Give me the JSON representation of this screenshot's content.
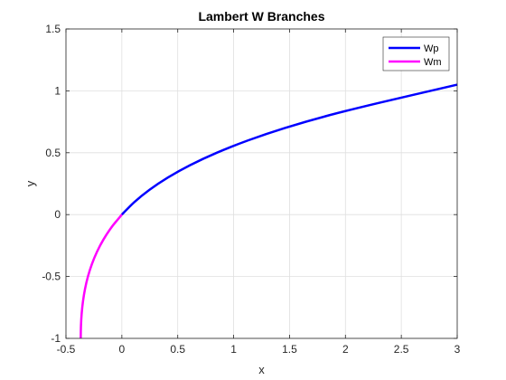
{
  "chart_data": {
    "type": "line",
    "title": "Lambert W Branches",
    "xlabel": "x",
    "ylabel": "y",
    "xlim": [
      -0.5,
      3
    ],
    "ylim": [
      -1,
      1.5
    ],
    "xticks": [
      -0.5,
      0,
      0.5,
      1,
      1.5,
      2,
      2.5,
      3
    ],
    "yticks": [
      -1,
      -0.5,
      0,
      0.5,
      1,
      1.5
    ],
    "xtick_labels": [
      "-0.5",
      "0",
      "0.5",
      "1",
      "1.5",
      "2",
      "2.5",
      "3"
    ],
    "ytick_labels": [
      "-1",
      "-0.5",
      "0",
      "0.5",
      "1",
      "1.5"
    ],
    "grid": true,
    "legend_position": "top-right",
    "series": [
      {
        "name": "Wp",
        "color": "#0000ff",
        "x": [
          0,
          0.11,
          0.2462,
          0.4121,
          0.6116,
          0.8494,
          1.1302,
          1.4595,
          1.8433,
          2.2879,
          3.0
        ],
        "y": [
          0,
          0.1,
          0.2,
          0.3,
          0.4,
          0.5,
          0.6,
          0.7,
          0.8,
          0.9,
          1.0499
        ]
      },
      {
        "name": "Wm",
        "color": "#ff00ff",
        "x": [
          -0.3679,
          -0.3659,
          -0.3595,
          -0.3476,
          -0.3293,
          -0.3033,
          -0.2681,
          -0.2222,
          -0.1637,
          -0.0905,
          0
        ],
        "y": [
          -1,
          -0.9,
          -0.8,
          -0.7,
          -0.6,
          -0.5,
          -0.4,
          -0.3,
          -0.2,
          -0.1,
          0
        ]
      }
    ]
  }
}
